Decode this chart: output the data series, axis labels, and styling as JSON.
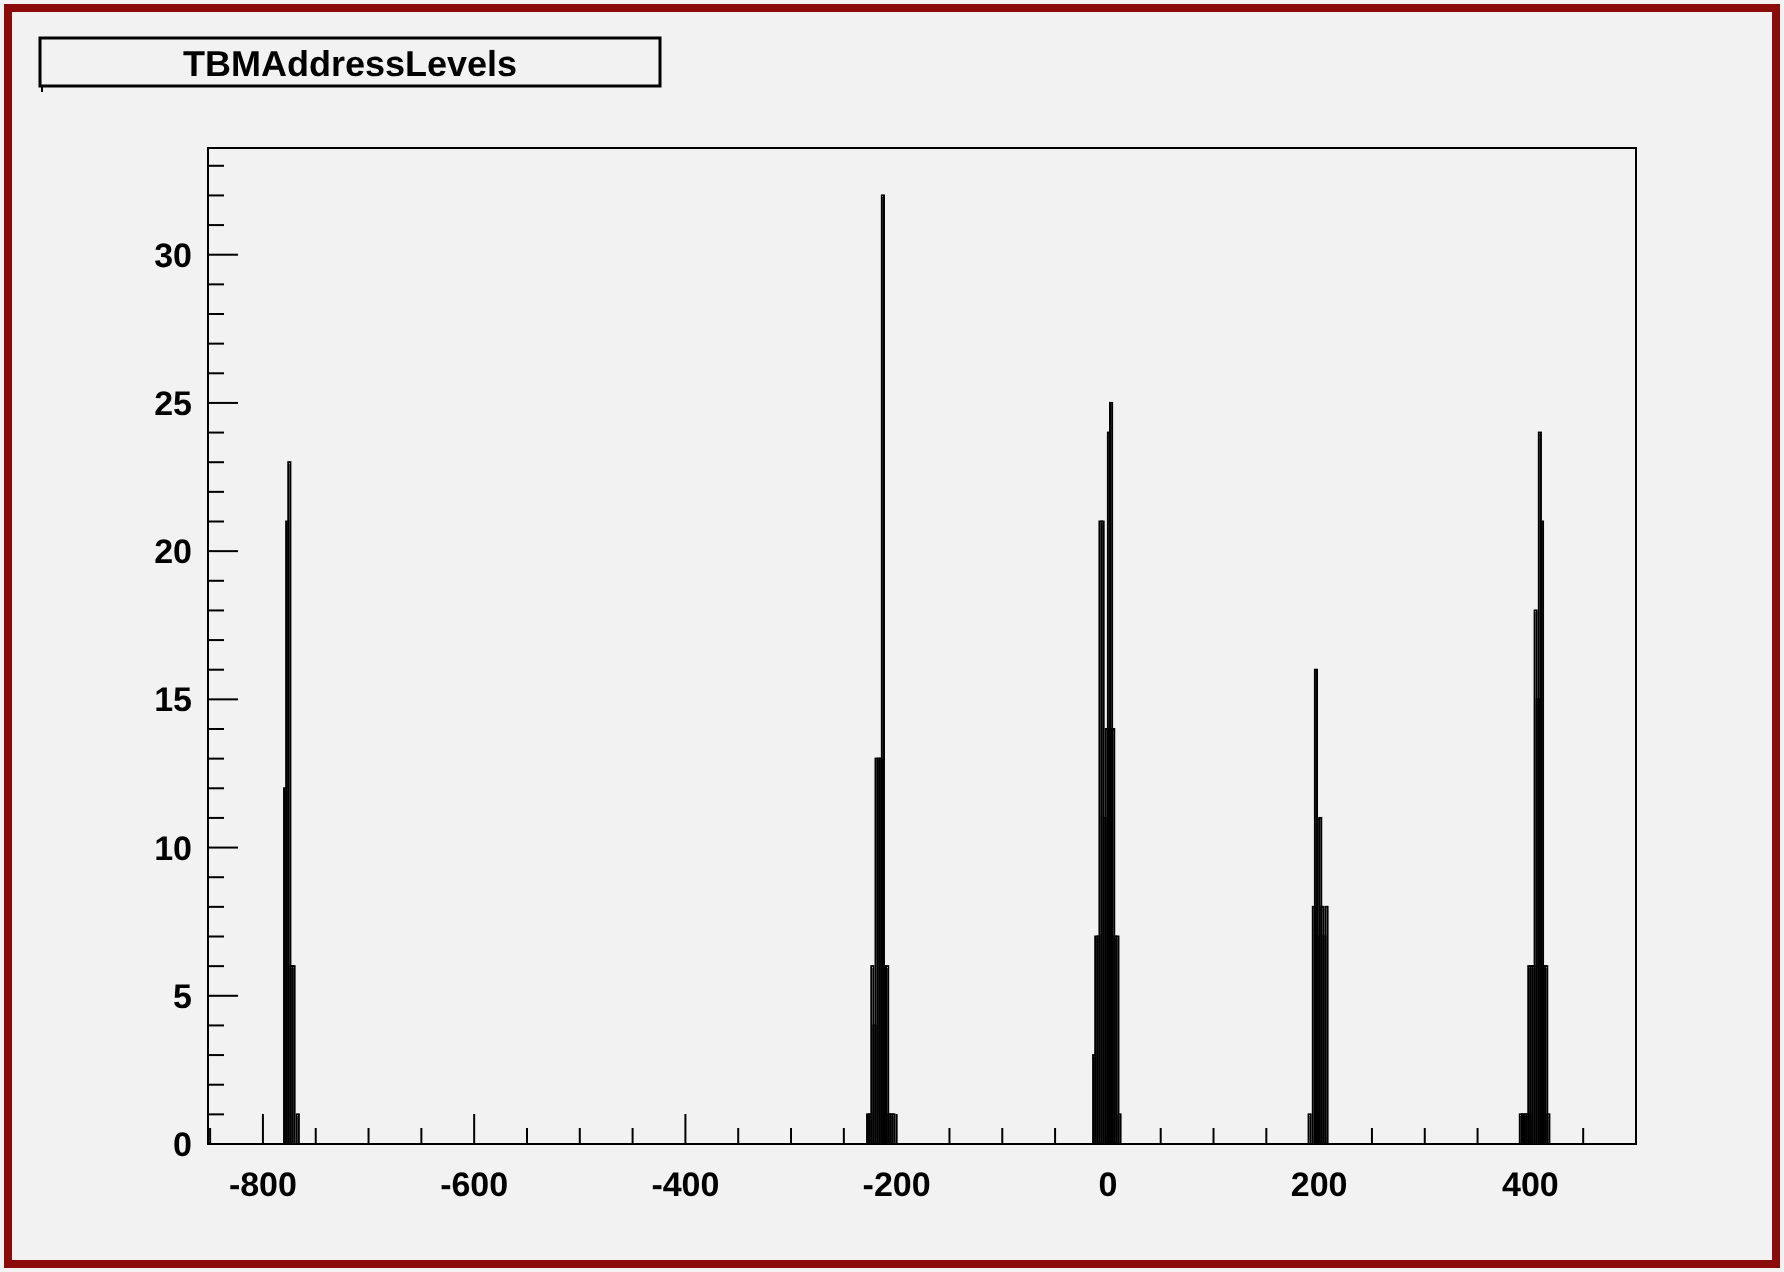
{
  "chart_data": {
    "type": "histogram",
    "title": "TBMAddressLevels",
    "bins": [
      -780,
      -778,
      -776,
      -774,
      -772,
      -770,
      -768,
      -766,
      -228,
      -226,
      -224,
      -222,
      -220,
      -218,
      -216,
      -214,
      -212,
      -210,
      -208,
      -206,
      -204,
      -202,
      -14,
      -12,
      -10,
      -8,
      -6,
      -4,
      -2,
      0,
      2,
      4,
      6,
      8,
      10,
      12,
      190,
      192,
      194,
      196,
      198,
      200,
      202,
      204,
      206,
      208,
      390,
      392,
      394,
      396,
      398,
      400,
      402,
      404,
      406,
      408,
      410,
      412,
      414,
      416,
      418
    ],
    "values": [
      12,
      21,
      23,
      6,
      6,
      0,
      1,
      0,
      1,
      1,
      6,
      4,
      13,
      13,
      13,
      32,
      6,
      6,
      1,
      1,
      1,
      0,
      3,
      7,
      7,
      21,
      21,
      11,
      14,
      24,
      25,
      14,
      7,
      7,
      1,
      0,
      1,
      0,
      8,
      16,
      7,
      11,
      8,
      7,
      8,
      0,
      1,
      1,
      1,
      1,
      6,
      6,
      6,
      18,
      15,
      24,
      21,
      6,
      6,
      1
    ],
    "color": "#000000",
    "xlim": [
      -852,
      500
    ],
    "xticks": [
      {
        "value": -850,
        "label": null
      },
      -800,
      {
        "value": -750,
        "label": null
      },
      {
        "value": -700,
        "label": null
      },
      {
        "value": -650,
        "label": null
      },
      -600,
      {
        "value": -550,
        "label": null
      },
      {
        "value": -500,
        "label": null
      },
      {
        "value": -450,
        "label": null
      },
      -400,
      {
        "value": -350,
        "label": null
      },
      {
        "value": -300,
        "label": null
      },
      {
        "value": -250,
        "label": null
      },
      -200,
      {
        "value": -150,
        "label": null
      },
      {
        "value": -100,
        "label": null
      },
      {
        "value": -50,
        "label": null
      },
      0,
      {
        "value": 50,
        "label": null
      },
      {
        "value": 100,
        "label": null
      },
      {
        "value": 150,
        "label": null
      },
      200,
      {
        "value": 250,
        "label": null
      },
      {
        "value": 300,
        "label": null
      },
      {
        "value": 350,
        "label": null
      },
      400,
      {
        "value": 450,
        "label": null
      },
      {
        "value": 500,
        "label": null
      }
    ],
    "ylim": [
      0,
      33.6
    ],
    "yticks": [
      0,
      {
        "value": 1,
        "label": null
      },
      {
        "value": 2,
        "label": null
      },
      {
        "value": 3,
        "label": null
      },
      {
        "value": 4,
        "label": null
      },
      5,
      {
        "value": 6,
        "label": null
      },
      {
        "value": 7,
        "label": null
      },
      {
        "value": 8,
        "label": null
      },
      {
        "value": 9,
        "label": null
      },
      10,
      {
        "value": 11,
        "label": null
      },
      {
        "value": 12,
        "label": null
      },
      {
        "value": 13,
        "label": null
      },
      {
        "value": 14,
        "label": null
      },
      15,
      {
        "value": 16,
        "label": null
      },
      {
        "value": 17,
        "label": null
      },
      {
        "value": 18,
        "label": null
      },
      {
        "value": 19,
        "label": null
      },
      20,
      {
        "value": 21,
        "label": null
      },
      {
        "value": 22,
        "label": null
      },
      {
        "value": 23,
        "label": null
      },
      {
        "value": 24,
        "label": null
      },
      25,
      {
        "value": 26,
        "label": null
      },
      {
        "value": 27,
        "label": null
      },
      {
        "value": 28,
        "label": null
      },
      {
        "value": 29,
        "label": null
      },
      30,
      {
        "value": 31,
        "label": null
      },
      {
        "value": 32,
        "label": null
      },
      {
        "value": 33,
        "label": null
      }
    ],
    "grid": false
  }
}
